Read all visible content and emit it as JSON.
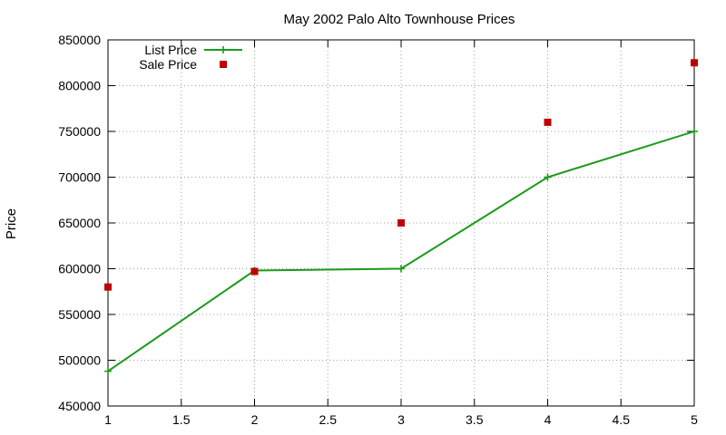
{
  "chart_data": {
    "type": "line",
    "title": "May 2002 Palo Alto Townhouse Prices",
    "xlabel": "",
    "ylabel": "Price",
    "xlim": [
      1,
      5
    ],
    "ylim": [
      450000,
      850000
    ],
    "x_ticks": [
      "1",
      "1.5",
      "2",
      "2.5",
      "3",
      "3.5",
      "4",
      "4.5",
      "5"
    ],
    "y_ticks": [
      "450000",
      "500000",
      "550000",
      "600000",
      "650000",
      "700000",
      "750000",
      "800000",
      "850000"
    ],
    "grid": true,
    "legend_position": "top-left",
    "series": [
      {
        "name": "List Price",
        "style": "linespoints",
        "marker": "plus",
        "color": "#1a9a1a",
        "x": [
          1,
          2,
          3,
          4,
          5
        ],
        "values": [
          488000,
          598000,
          600000,
          700000,
          750000
        ]
      },
      {
        "name": "Sale Price",
        "style": "points",
        "marker": "square",
        "color": "#c00000",
        "x": [
          1,
          2,
          3,
          4,
          5
        ],
        "values": [
          580000,
          597000,
          650000,
          760000,
          825000
        ]
      }
    ]
  }
}
